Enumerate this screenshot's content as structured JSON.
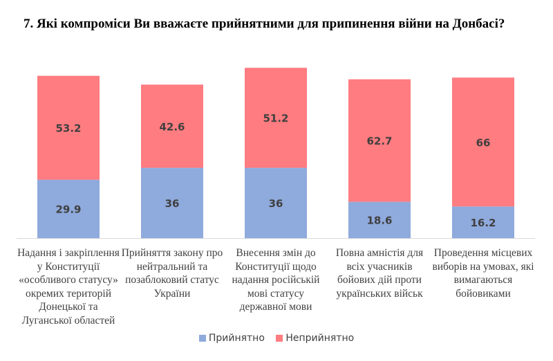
{
  "chart_data": {
    "type": "bar",
    "stacked": true,
    "title": "7.  Які компроміси Ви вважаєте прийнятними для припинення війни на Донбасі?",
    "categories": [
      "Надання і закріплення у Конституції «особливого статусу» окремих територій Донецької та Луганської областей",
      "Прийняття закону про нейтральний та позаблоковий статус України",
      "Внесення змін до Конституції щодо надання російській мові статусу державної мови",
      "Повна амністія для всіх учасників бойових дій проти українських військ",
      "Проведення місцевих виборів на умовах, які вимагаються бойовиками"
    ],
    "series": [
      {
        "name": "Прийнятно",
        "color": "#8faadc",
        "values": [
          29.9,
          36,
          36,
          18.6,
          16.2
        ]
      },
      {
        "name": "Неприйнятно",
        "color": "#ff7c80",
        "values": [
          53.2,
          42.6,
          51.2,
          62.7,
          66
        ]
      }
    ],
    "data_labels": true,
    "grid": false,
    "legend_position": "bottom"
  }
}
